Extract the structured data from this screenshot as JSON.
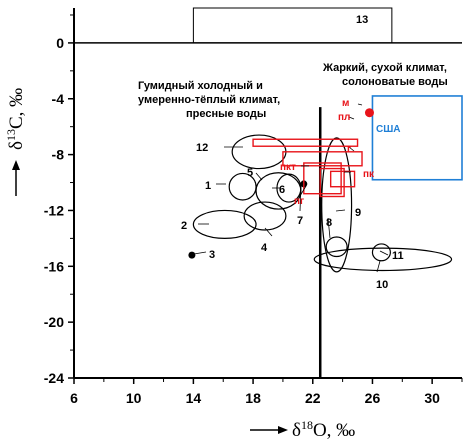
{
  "colors": {
    "axis": "#000000",
    "red": "#e8141a",
    "blue": "#1f7fd6"
  },
  "chart_data": {
    "type": "scatter",
    "xlabel": "δ18O, ‰",
    "ylabel": "δ13C, ‰",
    "xlim": [
      6,
      32
    ],
    "ylim": [
      -24,
      2.5
    ],
    "xticks": [
      "6",
      "10",
      "14",
      "18",
      "22",
      "26",
      "30"
    ],
    "yticks": [
      "0",
      "-4",
      "-8",
      "-12",
      "-16",
      "-20",
      "-24"
    ],
    "grid": false,
    "reference_lines": {
      "horizontal_y": 0,
      "vertical_x": 22.5
    },
    "annotations": {
      "humid": [
        "Гумидный холодный и",
        "умеренно-тёплый климат,",
        "пресные воды"
      ],
      "arid": [
        "Жаркий, сухой климат,",
        "солоноватые воды"
      ]
    },
    "black_fields": [
      {
        "label": "1",
        "cx": 17.3,
        "cy": -10.3,
        "rx": 0.9,
        "ry": 0.95,
        "shape": "ellipse"
      },
      {
        "label": "2",
        "cx": 16.1,
        "cy": -13.0,
        "rx": 2.1,
        "ry": 1.0,
        "shape": "ellipse"
      },
      {
        "label": "4",
        "cx": 18.8,
        "cy": -12.4,
        "rx": 1.4,
        "ry": 1.0,
        "shape": "ellipse"
      },
      {
        "label": "5",
        "cx": 19.7,
        "cy": -10.6,
        "rx": 1.5,
        "ry": 1.3,
        "shape": "ellipse"
      },
      {
        "label": "6",
        "cx": 20.4,
        "cy": -10.4,
        "rx": 0.8,
        "ry": 1.0,
        "shape": "ellipse"
      },
      {
        "label": "8",
        "cx": 23.6,
        "cy": -14.6,
        "rx": 0.7,
        "ry": 0.7,
        "shape": "ellipse"
      },
      {
        "label": "9",
        "cx": 23.6,
        "cy": -11.6,
        "rx": 1.0,
        "ry": 4.8,
        "shape": "ellipse"
      },
      {
        "label": "10",
        "cx": 26.7,
        "cy": -15.5,
        "rx": 4.6,
        "ry": 0.8,
        "shape": "ellipse"
      },
      {
        "label": "11",
        "cx": 26.6,
        "cy": -15.0,
        "rx": 0.6,
        "ry": 0.6,
        "shape": "ellipse"
      },
      {
        "label": "12",
        "cx": 18.4,
        "cy": -7.8,
        "rx": 1.8,
        "ry": 1.2,
        "shape": "ellipse"
      },
      {
        "label": "13",
        "x0": 14.0,
        "x1": 27.3,
        "y0": 0.0,
        "y1": 2.5,
        "shape": "rect"
      }
    ],
    "black_points": [
      {
        "label": "3",
        "x": 13.9,
        "y": -15.2
      },
      {
        "label": "7",
        "x": 21.4,
        "y": -10.1
      }
    ],
    "red_fields": [
      {
        "label": "пл",
        "x0": 18.0,
        "x1": 25.0,
        "y0": -7.4,
        "y1": -6.9
      },
      {
        "label": "г",
        "x0": 20.0,
        "x1": 25.3,
        "y0": -8.8,
        "y1": -7.8
      },
      {
        "label": "пкт",
        "x0": 21.4,
        "x1": 23.9,
        "y0": -10.8,
        "y1": -8.6
      },
      {
        "label": "пг",
        "x0": 22.5,
        "x1": 24.1,
        "y0": -11.0,
        "y1": -9.0
      },
      {
        "label": "пк",
        "x0": 23.2,
        "x1": 24.8,
        "y0": -10.3,
        "y1": -9.2
      }
    ],
    "red_points": [
      {
        "label": "м",
        "x": 25.8,
        "y": -5.0
      }
    ],
    "blue_fields": [
      {
        "label": "США",
        "x0": 26.0,
        "x1": 32.0,
        "y0": -9.8,
        "y1": -3.8
      }
    ]
  }
}
